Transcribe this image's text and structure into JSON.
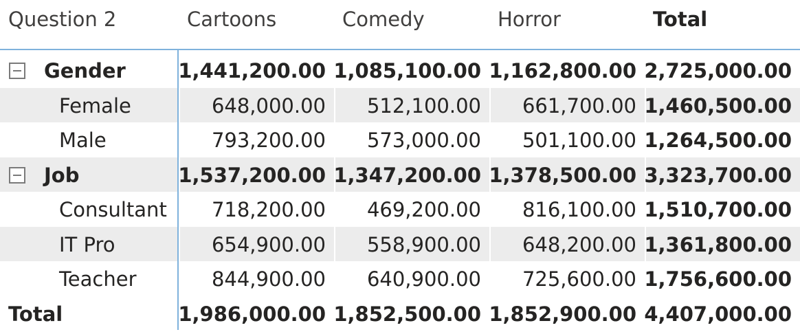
{
  "matrix": {
    "header": {
      "row_header": "Question 2",
      "columns": [
        "Cartoons",
        "Comedy",
        "Horror"
      ],
      "total": "Total"
    },
    "rows": [
      {
        "label": "Gender",
        "level": 0,
        "bold": true,
        "expander": "collapse-icon",
        "values": [
          "1,441,200.00",
          "1,085,100.00",
          "1,162,800.00"
        ],
        "total": "2,725,000.00"
      },
      {
        "label": "Female",
        "level": 1,
        "bold": false,
        "values": [
          "648,000.00",
          "512,100.00",
          "661,700.00"
        ],
        "total": "1,460,500.00"
      },
      {
        "label": "Male",
        "level": 1,
        "bold": false,
        "values": [
          "793,200.00",
          "573,000.00",
          "501,100.00"
        ],
        "total": "1,264,500.00"
      },
      {
        "label": "Job",
        "level": 0,
        "bold": true,
        "expander": "collapse-icon",
        "values": [
          "1,537,200.00",
          "1,347,200.00",
          "1,378,500.00"
        ],
        "total": "3,323,700.00"
      },
      {
        "label": "Consultant",
        "level": 1,
        "bold": false,
        "values": [
          "718,200.00",
          "469,200.00",
          "816,100.00"
        ],
        "total": "1,510,700.00"
      },
      {
        "label": "IT Pro",
        "level": 1,
        "bold": false,
        "values": [
          "654,900.00",
          "558,900.00",
          "648,200.00"
        ],
        "total": "1,361,800.00"
      },
      {
        "label": "Teacher",
        "level": 1,
        "bold": false,
        "values": [
          "844,900.00",
          "640,900.00",
          "725,600.00"
        ],
        "total": "1,756,600.00"
      },
      {
        "label": "Total",
        "level": -1,
        "bold": true,
        "values": [
          "1,986,000.00",
          "1,852,500.00",
          "1,852,900.00"
        ],
        "total": "4,407,000.00"
      }
    ],
    "colors": {
      "accent_line": "#7fb2dc",
      "band": "#ececec",
      "text": "#252423"
    }
  }
}
